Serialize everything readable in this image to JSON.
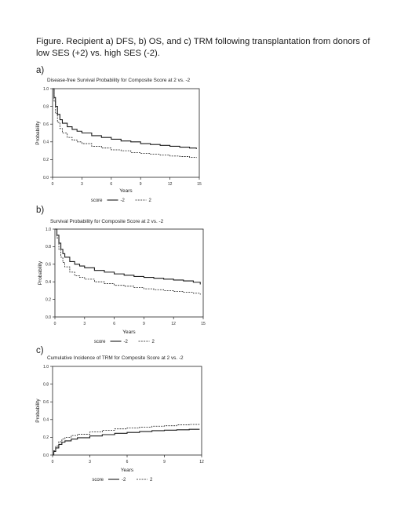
{
  "caption": "Figure. Recipient a) DFS, b) OS, and c) TRM following transplantation from donors of low SES (+2) vs. high SES (-2).",
  "chart_data": [
    {
      "panel": "a)",
      "type": "line",
      "title": "Disease-free Survival Probability for Composite Score at 2 vs. -2",
      "xlabel": "Years",
      "ylabel": "Probability",
      "xlim": [
        0,
        15
      ],
      "ylim": [
        0,
        1.0
      ],
      "xticks": [
        "0",
        "3",
        "6",
        "9",
        "12",
        "15"
      ],
      "yticks": [
        "0.0",
        "0.2",
        "0.4",
        "0.6",
        "0.8",
        "1.0"
      ],
      "legend_title": "score",
      "grid": false,
      "legend": "bottom",
      "series": [
        {
          "name": "-2",
          "style": "solid",
          "x": [
            0,
            0.15,
            0.3,
            0.5,
            0.75,
            1,
            1.5,
            2,
            2.5,
            3,
            4,
            5,
            6,
            7,
            8,
            9,
            10,
            11,
            12,
            13,
            14,
            14.7
          ],
          "y": [
            1.0,
            0.9,
            0.8,
            0.71,
            0.65,
            0.61,
            0.57,
            0.54,
            0.52,
            0.5,
            0.47,
            0.45,
            0.43,
            0.41,
            0.4,
            0.38,
            0.37,
            0.36,
            0.35,
            0.34,
            0.33,
            0.32
          ]
        },
        {
          "name": "2",
          "style": "dashed",
          "x": [
            0,
            0.15,
            0.3,
            0.5,
            0.75,
            1,
            1.5,
            2,
            2.5,
            3,
            4,
            5,
            6,
            7,
            8,
            9,
            10,
            11,
            12,
            13,
            14,
            14.7
          ],
          "y": [
            1.0,
            0.86,
            0.72,
            0.62,
            0.55,
            0.5,
            0.45,
            0.42,
            0.4,
            0.38,
            0.35,
            0.33,
            0.31,
            0.3,
            0.28,
            0.27,
            0.26,
            0.25,
            0.24,
            0.235,
            0.225,
            0.22
          ]
        }
      ]
    },
    {
      "panel": "b)",
      "type": "line",
      "title": "Survival Probability for Composite Score at 2 vs. -2",
      "xlabel": "Years",
      "ylabel": "Probability",
      "xlim": [
        0,
        15
      ],
      "ylim": [
        0,
        1.0
      ],
      "xticks": [
        "0",
        "3",
        "6",
        "9",
        "12",
        "15"
      ],
      "yticks": [
        "0.0",
        "0.2",
        "0.4",
        "0.6",
        "0.8",
        "1.0"
      ],
      "legend_title": "score",
      "grid": false,
      "legend": "bottom",
      "series": [
        {
          "name": "-2",
          "style": "solid",
          "x": [
            0,
            0.2,
            0.4,
            0.6,
            0.8,
            1,
            1.5,
            2,
            2.5,
            3,
            4,
            5,
            6,
            7,
            8,
            9,
            10,
            11,
            12,
            13,
            14,
            14.7
          ],
          "y": [
            1.0,
            0.93,
            0.84,
            0.77,
            0.72,
            0.68,
            0.63,
            0.6,
            0.58,
            0.56,
            0.53,
            0.51,
            0.49,
            0.475,
            0.46,
            0.45,
            0.44,
            0.43,
            0.42,
            0.41,
            0.395,
            0.37
          ]
        },
        {
          "name": "2",
          "style": "dashed",
          "x": [
            0,
            0.2,
            0.4,
            0.6,
            0.8,
            1,
            1.5,
            2,
            2.5,
            3,
            4,
            5,
            6,
            7,
            8,
            9,
            10,
            11,
            12,
            13,
            14,
            14.7
          ],
          "y": [
            1.0,
            0.9,
            0.77,
            0.68,
            0.62,
            0.57,
            0.51,
            0.47,
            0.45,
            0.43,
            0.4,
            0.38,
            0.36,
            0.35,
            0.335,
            0.32,
            0.31,
            0.3,
            0.29,
            0.28,
            0.27,
            0.255
          ]
        }
      ]
    },
    {
      "panel": "c)",
      "type": "line",
      "title": "Cumulative Incidence of TRM for Composite Score at 2 vs. -2",
      "xlabel": "Years",
      "ylabel": "Probability",
      "xlim": [
        0,
        12
      ],
      "ylim": [
        0,
        1.0
      ],
      "xticks": [
        "0",
        "3",
        "6",
        "9",
        "12"
      ],
      "yticks": [
        "0.0",
        "0.2",
        "0.4",
        "0.6",
        "0.8",
        "1.0"
      ],
      "legend_title": "score",
      "grid": false,
      "legend": "bottom",
      "series": [
        {
          "name": "-2",
          "style": "solid",
          "x": [
            0,
            0.1,
            0.25,
            0.5,
            0.75,
            1,
            1.5,
            2,
            3,
            4,
            5,
            6,
            7,
            8,
            9,
            10,
            11,
            11.8
          ],
          "y": [
            0.0,
            0.04,
            0.08,
            0.12,
            0.145,
            0.16,
            0.18,
            0.195,
            0.215,
            0.23,
            0.245,
            0.255,
            0.265,
            0.275,
            0.28,
            0.285,
            0.29,
            0.295
          ]
        },
        {
          "name": "2",
          "style": "dashed",
          "x": [
            0,
            0.1,
            0.25,
            0.5,
            0.75,
            1,
            1.5,
            2,
            3,
            4,
            5,
            6,
            7,
            8,
            9,
            10,
            11,
            11.8
          ],
          "y": [
            0.0,
            0.05,
            0.1,
            0.15,
            0.18,
            0.2,
            0.22,
            0.235,
            0.26,
            0.28,
            0.295,
            0.305,
            0.315,
            0.325,
            0.33,
            0.34,
            0.345,
            0.35
          ]
        }
      ]
    }
  ]
}
